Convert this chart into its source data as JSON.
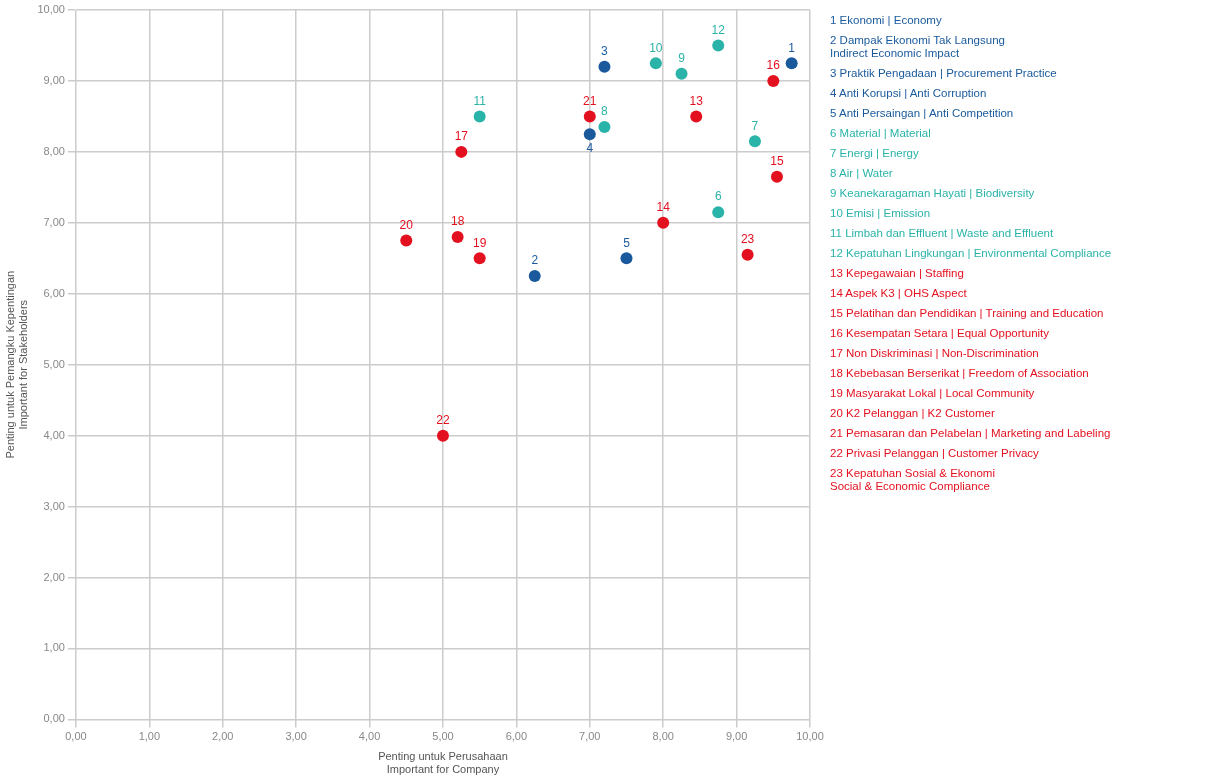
{
  "chart_data": {
    "type": "scatter",
    "xlabel": "Penting untuk Perusahaan\nImportant for Company",
    "ylabel": "Penting untuk Pemangku Kepentingan\nImportant for Stakeholders",
    "xlim": [
      0,
      10
    ],
    "ylim": [
      0,
      10
    ],
    "xticks": [
      {
        "value": 0,
        "label": "0,00"
      },
      {
        "value": 1,
        "label": "1,00"
      },
      {
        "value": 2,
        "label": "2,00"
      },
      {
        "value": 3,
        "label": "3,00"
      },
      {
        "value": 4,
        "label": "4,00"
      },
      {
        "value": 5,
        "label": "5,00"
      },
      {
        "value": 6,
        "label": "6,00"
      },
      {
        "value": 7,
        "label": "7,00"
      },
      {
        "value": 8,
        "label": "8,00"
      },
      {
        "value": 9,
        "label": "9,00"
      },
      {
        "value": 10,
        "label": "10,00"
      }
    ],
    "yticks": [
      {
        "value": 0,
        "label": "0,00"
      },
      {
        "value": 1,
        "label": "1,00"
      },
      {
        "value": 2,
        "label": "2,00"
      },
      {
        "value": 3,
        "label": "3,00"
      },
      {
        "value": 4,
        "label": "4,00"
      },
      {
        "value": 5,
        "label": "5,00"
      },
      {
        "value": 6,
        "label": "6,00"
      },
      {
        "value": 7,
        "label": "7,00"
      },
      {
        "value": 8,
        "label": "8,00"
      },
      {
        "value": 9,
        "label": "9,00"
      },
      {
        "value": 10,
        "label": "10,00"
      }
    ],
    "grid": true,
    "marker": "circle",
    "series": [
      {
        "color": "#1a5a9c",
        "x": [
          9.75,
          6.25,
          7.2,
          7.0,
          7.5
        ],
        "values": [
          9.25,
          6.25,
          9.2,
          8.25,
          6.5
        ]
      },
      {
        "color": "#2ab3a8",
        "x": [
          8.75,
          9.25,
          7.2,
          8.25,
          7.9,
          5.5,
          8.75
        ],
        "values": [
          7.15,
          8.15,
          8.35,
          9.1,
          9.25,
          8.5,
          9.5
        ]
      },
      {
        "color": "#e3101f",
        "x": [
          8.45,
          8.0,
          9.55,
          9.5,
          5.25,
          5.2,
          5.5,
          4.5,
          7.0,
          5.0,
          9.15
        ],
        "values": [
          8.5,
          7.0,
          7.65,
          9.0,
          8.0,
          6.8,
          6.5,
          6.75,
          8.5,
          4.0,
          6.55
        ]
      }
    ],
    "annotations": [
      {
        "text": "1",
        "x": 9.75,
        "y": 9.25
      },
      {
        "text": "2",
        "x": 6.25,
        "y": 6.25
      },
      {
        "text": "3",
        "x": 7.2,
        "y": 9.2
      },
      {
        "text": "4",
        "x": 7.0,
        "y": 8.25
      },
      {
        "text": "5",
        "x": 7.5,
        "y": 6.5
      },
      {
        "text": "6",
        "x": 8.75,
        "y": 7.15
      },
      {
        "text": "7",
        "x": 9.25,
        "y": 8.15
      },
      {
        "text": "8",
        "x": 7.2,
        "y": 8.35
      },
      {
        "text": "9",
        "x": 8.25,
        "y": 9.1
      },
      {
        "text": "10",
        "x": 7.9,
        "y": 9.25
      },
      {
        "text": "11",
        "x": 5.5,
        "y": 8.5
      },
      {
        "text": "12",
        "x": 8.75,
        "y": 9.5
      },
      {
        "text": "13",
        "x": 8.45,
        "y": 8.5
      },
      {
        "text": "14",
        "x": 8.0,
        "y": 7.0
      },
      {
        "text": "15",
        "x": 9.55,
        "y": 7.65
      },
      {
        "text": "16",
        "x": 9.5,
        "y": 9.0
      },
      {
        "text": "17",
        "x": 5.25,
        "y": 8.0
      },
      {
        "text": "18",
        "x": 5.2,
        "y": 6.8
      },
      {
        "text": "19",
        "x": 5.5,
        "y": 6.5
      },
      {
        "text": "20",
        "x": 4.5,
        "y": 6.75
      },
      {
        "text": "21",
        "x": 7.0,
        "y": 8.5
      },
      {
        "text": "22",
        "x": 5.0,
        "y": 4.0
      },
      {
        "text": "23",
        "x": 9.15,
        "y": 6.55
      },
      "1 Ekonomi | Economy",
      "2 Dampak Ekonomi Tak Langsung\nIndirect Economic Impact",
      "3 Praktik Pengadaan | Procurement Practice",
      "4 Anti Korupsi | Anti Corruption",
      "5 Anti Persaingan | Anti Competition",
      "6 Material | Material",
      "7 Energi | Energy",
      "8 Air | Water",
      "9 Keanekaragaman Hayati | Biodiversity",
      "10 Emisi | Emission",
      "11 Limbah dan Effluent | Waste and Effluent",
      "12 Kepatuhan Lingkungan | Environmental Compliance",
      "13 Kepegawaian | Staffing",
      "14 Aspek K3 | OHS Aspect",
      "15 Pelatihan dan Pendidikan | Training and Education",
      "16 Kesempatan Setara | Equal Opportunity",
      "17 Non Diskriminasi | Non-Discrimination",
      "18 Kebebasan Berserikat | Freedom of Association",
      "19 Masyarakat Lokal | Local Community",
      "20 K2 Pelanggan | K2 Customer",
      "21 Pemasaran dan Pelabelan | Marketing and Labeling",
      "22 Privasi Pelanggan | Customer Privacy",
      "23 Kepatuhan Sosial & Ekonomi\nSocial & Economic Compliance"
    ]
  }
}
